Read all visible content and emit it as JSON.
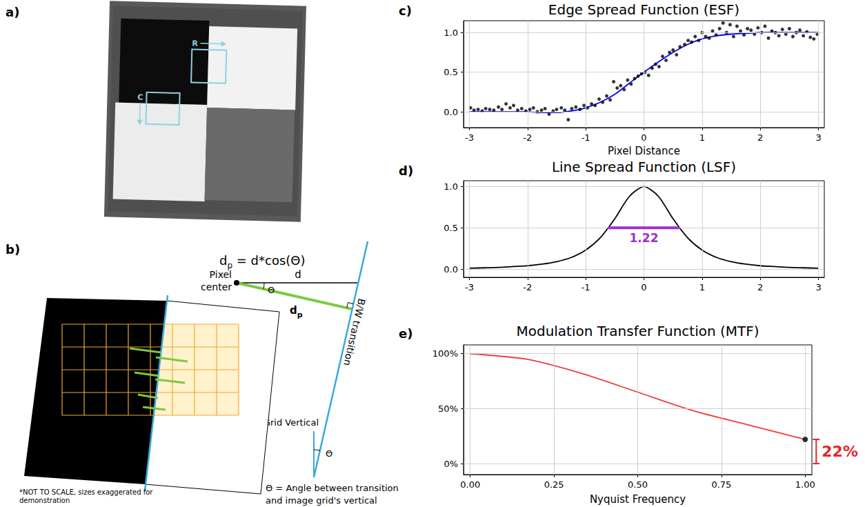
{
  "panel_labels": {
    "a": "a)",
    "b": "b)",
    "c": "c)",
    "d": "d)",
    "e": "e)"
  },
  "image": {
    "boxes": [
      {
        "label": "R"
      },
      {
        "label": "C"
      }
    ]
  },
  "diagram": {
    "formula": {
      "main": "d",
      "subscript": "p",
      "rest": " = d*cos(Θ)"
    },
    "pixel_center": "Pixel center",
    "d": "d",
    "d_p": {
      "main": "d",
      "subscript": "p"
    },
    "angle": "Θ",
    "transition": "B/W transition",
    "grid_vertical": "Grid Vertical",
    "note": "*NOT TO SCALE, sizes exaggerated for demonstration",
    "caption": "Θ = Angle between transition and image grid's vertical"
  },
  "chart_data": [
    {
      "type": "scatter",
      "title": "Edge Spread Function (ESF)",
      "x_label": "Pixel Distance",
      "xlim": [
        -3.1,
        3.1
      ],
      "xticks": [
        -3,
        -2,
        -1,
        0,
        1,
        2,
        3
      ],
      "ylim": [
        -0.2,
        1.15
      ],
      "yticks": [
        {
          "value": 0,
          "label": "0.0"
        },
        {
          "value": 0.5,
          "label": "0.5"
        },
        {
          "value": 1,
          "label": "1.0"
        }
      ],
      "grid": true,
      "series": [
        {
          "type": "scatter",
          "color": "#000000",
          "marker": "circle",
          "x": [
            -2.98,
            -2.92,
            -2.85,
            -2.78,
            -2.72,
            -2.65,
            -2.58,
            -2.5,
            -2.44,
            -2.37,
            -2.3,
            -2.24,
            -2.17,
            -2.1,
            -2.03,
            -1.96,
            -1.9,
            -1.83,
            -1.76,
            -1.7,
            -1.63,
            -1.56,
            -1.5,
            -1.42,
            -1.36,
            -1.3,
            -1.24,
            -1.17,
            -1.1,
            -1.03,
            -0.97,
            -0.9,
            -0.84,
            -0.77,
            -0.71,
            -0.64,
            -0.58,
            -0.52,
            -0.46,
            -0.4,
            -0.34,
            -0.28,
            -0.22,
            -0.16,
            -0.1,
            -0.04,
            0.02,
            0.08,
            0.14,
            0.2,
            0.26,
            0.32,
            0.38,
            0.44,
            0.5,
            0.56,
            0.62,
            0.7,
            0.76,
            0.82,
            0.88,
            0.94,
            1.0,
            1.06,
            1.12,
            1.18,
            1.24,
            1.3,
            1.36,
            1.42,
            1.48,
            1.54,
            1.6,
            1.66,
            1.72,
            1.78,
            1.84,
            1.9,
            1.96,
            2.02,
            2.08,
            2.14,
            2.2,
            2.26,
            2.32,
            2.38,
            2.44,
            2.5,
            2.56,
            2.62,
            2.68,
            2.74,
            2.8,
            2.86,
            2.92,
            2.98
          ],
          "values": [
            0.05,
            0.02,
            0.03,
            0.01,
            0.04,
            0.03,
            0.02,
            0.06,
            0.03,
            0.1,
            0.05,
            0.08,
            0.02,
            0.04,
            0.01,
            0.03,
            0.05,
            0.0,
            0.02,
            0.04,
            -0.03,
            0.01,
            0.03,
            0.05,
            0.02,
            -0.1,
            0.04,
            0.06,
            0.03,
            0.08,
            0.05,
            0.1,
            0.08,
            0.16,
            0.12,
            0.2,
            0.15,
            0.38,
            0.3,
            0.33,
            0.28,
            0.4,
            0.35,
            0.42,
            0.45,
            0.48,
            0.5,
            0.46,
            0.55,
            0.6,
            0.57,
            0.7,
            0.65,
            0.75,
            0.78,
            0.72,
            0.82,
            0.85,
            0.9,
            0.88,
            0.95,
            0.9,
            1.0,
            0.95,
            0.93,
            1.02,
            0.97,
            1.05,
            1.12,
            1.0,
            1.1,
            0.95,
            1.08,
            1.02,
            0.97,
            1.05,
            1.03,
            0.98,
            1.06,
            1.0,
            1.08,
            0.93,
            1.02,
            1.0,
            0.96,
            1.04,
            0.98,
            1.05,
            0.95,
            1.0,
            1.03,
            0.96,
            1.01,
            0.94,
            0.92,
            0.98
          ]
        },
        {
          "type": "line",
          "color": "#0000ff",
          "line_style": "solid",
          "x": [
            -3,
            -2.75,
            -2.5,
            -2.25,
            -2,
            -1.75,
            -1.5,
            -1.25,
            -1,
            -0.75,
            -0.5,
            -0.25,
            0,
            0.25,
            0.5,
            0.75,
            1,
            1.25,
            1.5,
            1.75,
            2,
            2.25,
            2.5,
            2.75,
            3
          ],
          "values": [
            0,
            0,
            0,
            0,
            0,
            -0.01,
            -0.01,
            0.01,
            0.05,
            0.12,
            0.22,
            0.36,
            0.5,
            0.63,
            0.75,
            0.85,
            0.92,
            0.96,
            0.98,
            0.99,
            1,
            1,
            1,
            1,
            1
          ]
        }
      ]
    },
    {
      "type": "line",
      "title": "Line Spread Function (LSF)",
      "xlim": [
        -3.1,
        3.1
      ],
      "xticks": [
        -3,
        -2,
        -1,
        0,
        1,
        2,
        3
      ],
      "ylim": [
        -0.1,
        1.07
      ],
      "yticks": [
        {
          "value": 0,
          "label": "0.0"
        },
        {
          "value": 0.5,
          "label": "0.5"
        },
        {
          "value": 1,
          "label": "1.0"
        }
      ],
      "grid": true,
      "series": [
        {
          "type": "line",
          "color": "#000000",
          "line_style": "solid",
          "x": [
            -3,
            -2.75,
            -2.5,
            -2.25,
            -2,
            -1.75,
            -1.5,
            -1.25,
            -1,
            -0.75,
            -0.5,
            -0.25,
            0,
            0.25,
            0.5,
            0.75,
            1,
            1.25,
            1.5,
            1.75,
            2,
            2.25,
            2.5,
            2.75,
            3
          ],
          "values": [
            0.01,
            0.015,
            0.02,
            0.03,
            0.04,
            0.06,
            0.09,
            0.14,
            0.23,
            0.38,
            0.61,
            0.88,
            1.0,
            0.88,
            0.61,
            0.38,
            0.23,
            0.14,
            0.09,
            0.06,
            0.04,
            0.03,
            0.02,
            0.015,
            0.01
          ]
        }
      ],
      "annotation": {
        "text": "1.22",
        "x_start": -0.61,
        "x_end": 0.61,
        "y": 0.5,
        "color": "#9b30d0"
      }
    },
    {
      "type": "line",
      "title": "Modulation Transfer Function (MTF)",
      "x_label": "Nyquist Frequency",
      "xlim": [
        -0.02,
        1.02
      ],
      "xticks": [
        {
          "value": 0,
          "label": "0.00"
        },
        0.25,
        {
          "value": 0.5,
          "label": "0.50"
        },
        0.75,
        {
          "value": 1,
          "label": "1.00"
        }
      ],
      "ylim": [
        -10,
        108
      ],
      "yticks": [
        {
          "value": 0,
          "label": "0%"
        },
        {
          "value": 50,
          "label": "50%"
        },
        {
          "value": 100,
          "label": "100%"
        }
      ],
      "grid": true,
      "series": [
        {
          "type": "line",
          "color": "#f03c3c",
          "line_style": "solid",
          "x": [
            0,
            0.167,
            0.333,
            0.5,
            0.667,
            0.833,
            1.0
          ],
          "values": [
            100,
            95,
            82,
            65,
            48,
            35,
            22
          ]
        }
      ],
      "annotation": {
        "text": "22%",
        "x": 1.0,
        "from": 0,
        "to": 22,
        "color": "#e8262b"
      }
    }
  ]
}
